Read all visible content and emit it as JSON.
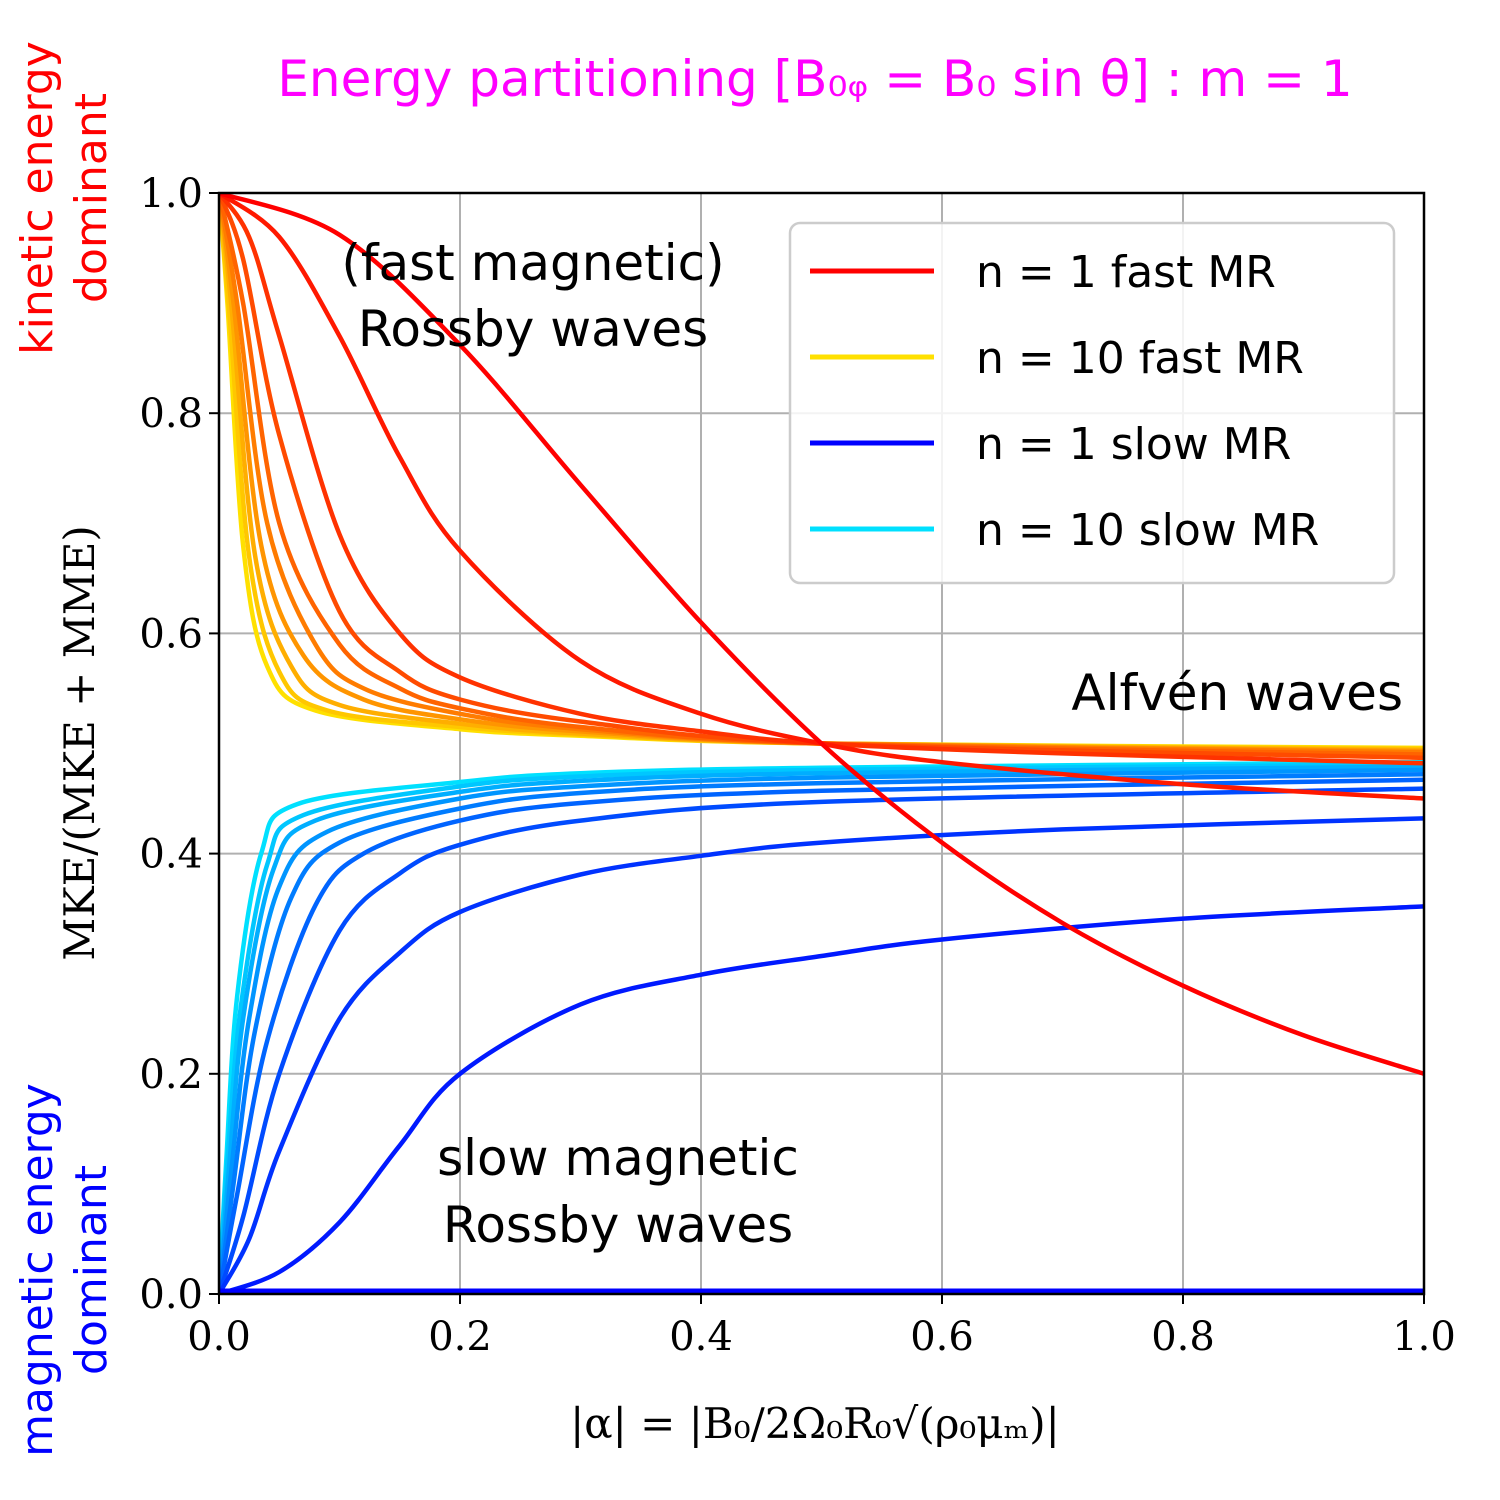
{
  "chart_data": {
    "type": "line",
    "title": "Energy partitioning [B₀ᵩ = B₀ sin θ] : m = 1",
    "title_color": "#ff00ff",
    "xlabel": "|α| = |B₀/2Ω₀R₀√(ρ₀μₘ)|",
    "ylabel": "MKE/(MKE + MME)",
    "xlim": [
      0,
      1
    ],
    "ylim": [
      0,
      1
    ],
    "x_ticks": [
      "0.0",
      "0.2",
      "0.4",
      "0.6",
      "0.8",
      "1.0"
    ],
    "y_ticks": [
      "0.0",
      "0.2",
      "0.4",
      "0.6",
      "0.8",
      "1.0"
    ],
    "grid": true,
    "legend_position": "top-right",
    "side_labels": {
      "top": {
        "line1": "kinetic energy",
        "line2": "dominant",
        "color": "#ff0000"
      },
      "bottom": {
        "line1": "magnetic energy",
        "line2": "dominant",
        "color": "#0000ff"
      }
    },
    "annotations": {
      "fast": {
        "line1": "(fast magnetic)",
        "line2": "Rossby waves"
      },
      "alfven": "Alfvén waves",
      "slow": {
        "line1": "slow magnetic",
        "line2": "Rossby waves"
      }
    },
    "legend": [
      {
        "label": "n = 1 fast MR",
        "color": "#ff0000"
      },
      {
        "label": "n = 10 fast MR",
        "color": "#ffe000"
      },
      {
        "label": "n = 1 slow MR",
        "color": "#0000ff"
      },
      {
        "label": "n = 10 slow MR",
        "color": "#00e0ff"
      }
    ],
    "families": {
      "fast": {
        "n": [
          1,
          2,
          3,
          4,
          5,
          6,
          7,
          8,
          9,
          10
        ],
        "color_n1": "#ff0000",
        "color_n10": "#ffe000"
      },
      "slow": {
        "n": [
          1,
          2,
          3,
          4,
          5,
          6,
          7,
          8,
          9,
          10
        ],
        "color_n1": "#0000ff",
        "color_n10": "#00e0ff"
      }
    },
    "series": [
      {
        "family": "fast",
        "n": 1,
        "x": [
          0,
          0.1,
          0.2,
          0.3,
          0.4,
          0.5,
          0.6,
          0.7,
          0.8,
          0.9,
          1.0
        ],
        "y": [
          1.0,
          0.962,
          0.862,
          0.735,
          0.61,
          0.5,
          0.41,
          0.337,
          0.28,
          0.235,
          0.2
        ]
      },
      {
        "family": "fast",
        "n": 2,
        "x": [
          0,
          0.05,
          0.1,
          0.15,
          0.2,
          0.3,
          0.4,
          0.5,
          0.6,
          0.8,
          1.0
        ],
        "y": [
          1.0,
          0.96,
          0.87,
          0.76,
          0.675,
          0.575,
          0.527,
          0.5,
          0.483,
          0.463,
          0.45
        ]
      },
      {
        "family": "fast",
        "n": 3,
        "x": [
          0,
          0.025,
          0.05,
          0.1,
          0.15,
          0.2,
          0.3,
          0.4,
          0.5,
          0.7,
          1.0
        ],
        "y": [
          1.0,
          0.96,
          0.87,
          0.69,
          0.6,
          0.56,
          0.527,
          0.511,
          0.5,
          0.491,
          0.482
        ]
      },
      {
        "family": "fast",
        "n": 4,
        "x": [
          0,
          0.02,
          0.05,
          0.1,
          0.15,
          0.2,
          0.3,
          0.5,
          1.0
        ],
        "y": [
          1.0,
          0.94,
          0.78,
          0.62,
          0.565,
          0.54,
          0.52,
          0.5,
          0.487
        ]
      },
      {
        "family": "fast",
        "n": 5,
        "x": [
          0,
          0.02,
          0.05,
          0.1,
          0.15,
          0.2,
          0.3,
          0.5,
          1.0
        ],
        "y": [
          1.0,
          0.9,
          0.7,
          0.59,
          0.55,
          0.532,
          0.515,
          0.5,
          0.49
        ]
      },
      {
        "family": "fast",
        "n": 6,
        "x": [
          0,
          0.015,
          0.04,
          0.08,
          0.12,
          0.2,
          0.3,
          0.5,
          1.0
        ],
        "y": [
          1.0,
          0.9,
          0.7,
          0.59,
          0.55,
          0.527,
          0.513,
          0.5,
          0.492
        ]
      },
      {
        "family": "fast",
        "n": 7,
        "x": [
          0,
          0.012,
          0.035,
          0.07,
          0.12,
          0.2,
          0.3,
          0.5,
          1.0
        ],
        "y": [
          1.0,
          0.9,
          0.68,
          0.58,
          0.54,
          0.522,
          0.511,
          0.5,
          0.493
        ]
      },
      {
        "family": "fast",
        "n": 8,
        "x": [
          0,
          0.01,
          0.03,
          0.06,
          0.1,
          0.2,
          0.3,
          0.5,
          1.0
        ],
        "y": [
          1.0,
          0.9,
          0.67,
          0.57,
          0.535,
          0.518,
          0.509,
          0.5,
          0.494
        ]
      },
      {
        "family": "fast",
        "n": 9,
        "x": [
          0,
          0.008,
          0.025,
          0.05,
          0.09,
          0.2,
          0.3,
          0.5,
          1.0
        ],
        "y": [
          1.0,
          0.9,
          0.67,
          0.565,
          0.53,
          0.515,
          0.508,
          0.5,
          0.495
        ]
      },
      {
        "family": "fast",
        "n": 10,
        "x": [
          0,
          0.007,
          0.02,
          0.04,
          0.08,
          0.2,
          0.3,
          0.5,
          1.0
        ],
        "y": [
          1.0,
          0.9,
          0.68,
          0.57,
          0.53,
          0.513,
          0.507,
          0.5,
          0.496
        ]
      },
      {
        "family": "slow",
        "n": 1,
        "x": [
          0,
          1.0
        ],
        "y": [
          0.003,
          0.003
        ]
      },
      {
        "family": "slow",
        "n": 2,
        "x": [
          0,
          0.05,
          0.1,
          0.15,
          0.2,
          0.3,
          0.4,
          0.5,
          0.6,
          0.8,
          1.0
        ],
        "y": [
          0,
          0.02,
          0.065,
          0.135,
          0.2,
          0.263,
          0.29,
          0.307,
          0.322,
          0.341,
          0.352
        ]
      },
      {
        "family": "slow",
        "n": 3,
        "x": [
          0,
          0.025,
          0.05,
          0.1,
          0.15,
          0.2,
          0.3,
          0.4,
          0.5,
          0.7,
          1.0
        ],
        "y": [
          0,
          0.05,
          0.13,
          0.25,
          0.31,
          0.347,
          0.381,
          0.398,
          0.41,
          0.422,
          0.432
        ]
      },
      {
        "family": "slow",
        "n": 4,
        "x": [
          0,
          0.02,
          0.05,
          0.1,
          0.15,
          0.2,
          0.3,
          0.5,
          1.0
        ],
        "y": [
          0,
          0.07,
          0.2,
          0.33,
          0.382,
          0.408,
          0.43,
          0.447,
          0.459
        ]
      },
      {
        "family": "slow",
        "n": 5,
        "x": [
          0,
          0.015,
          0.04,
          0.08,
          0.12,
          0.2,
          0.3,
          0.5,
          1.0
        ],
        "y": [
          0,
          0.09,
          0.23,
          0.353,
          0.4,
          0.43,
          0.446,
          0.457,
          0.467
        ]
      },
      {
        "family": "slow",
        "n": 6,
        "x": [
          0,
          0.012,
          0.03,
          0.06,
          0.1,
          0.2,
          0.3,
          0.5,
          1.0
        ],
        "y": [
          0,
          0.1,
          0.24,
          0.36,
          0.41,
          0.441,
          0.455,
          0.464,
          0.472
        ]
      },
      {
        "family": "slow",
        "n": 7,
        "x": [
          0,
          0.01,
          0.025,
          0.05,
          0.09,
          0.2,
          0.3,
          0.5,
          1.0
        ],
        "y": [
          0,
          0.11,
          0.25,
          0.37,
          0.42,
          0.45,
          0.461,
          0.469,
          0.476
        ]
      },
      {
        "family": "slow",
        "n": 8,
        "x": [
          0,
          0.008,
          0.02,
          0.045,
          0.08,
          0.2,
          0.3,
          0.5,
          1.0
        ],
        "y": [
          0,
          0.11,
          0.25,
          0.385,
          0.43,
          0.456,
          0.466,
          0.473,
          0.479
        ]
      },
      {
        "family": "slow",
        "n": 9,
        "x": [
          0,
          0.007,
          0.018,
          0.04,
          0.07,
          0.2,
          0.3,
          0.5,
          1.0
        ],
        "y": [
          0,
          0.12,
          0.26,
          0.39,
          0.435,
          0.461,
          0.47,
          0.476,
          0.481
        ]
      },
      {
        "family": "slow",
        "n": 10,
        "x": [
          0,
          0.006,
          0.015,
          0.035,
          0.065,
          0.2,
          0.3,
          0.5,
          1.0
        ],
        "y": [
          0,
          0.12,
          0.27,
          0.4,
          0.445,
          0.465,
          0.473,
          0.478,
          0.483
        ]
      }
    ]
  }
}
